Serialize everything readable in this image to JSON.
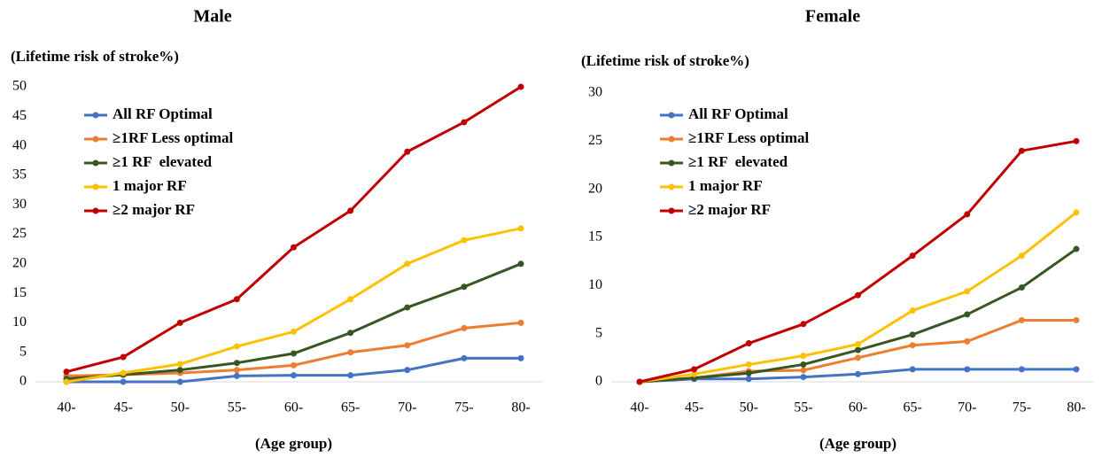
{
  "chart_data": [
    {
      "type": "line",
      "title": "Male",
      "y_label": "(Lifetime risk of stroke%)",
      "x_label": "(Age group)",
      "categories": [
        "40-",
        "45-",
        "50-",
        "55-",
        "60-",
        "65-",
        "70-",
        "75-",
        "80-"
      ],
      "ylim": [
        0,
        50
      ],
      "yticks": [
        0,
        5,
        10,
        15,
        20,
        25,
        30,
        35,
        40,
        45,
        50
      ],
      "series": [
        {
          "name": "All RF Optimal",
          "color": "#4472c4",
          "values": [
            0,
            0,
            0,
            1,
            1.1,
            1.1,
            2,
            4,
            4
          ]
        },
        {
          "name": "≥1RF Less optimal",
          "color": "#ed7d31",
          "values": [
            1,
            1.2,
            1.5,
            2,
            2.8,
            5,
            6.2,
            9.1,
            10
          ]
        },
        {
          "name": "≥1 RF  elevated",
          "color": "#375623",
          "values": [
            0.5,
            1.2,
            2,
            3.2,
            4.8,
            8.3,
            12.6,
            16.1,
            20
          ]
        },
        {
          "name": "1 major RF",
          "color": "#ffc000",
          "values": [
            0,
            1.5,
            3,
            6,
            8.5,
            14,
            20,
            24,
            26
          ]
        },
        {
          "name": "≥2 major RF",
          "color": "#c00000",
          "values": [
            1.7,
            4.2,
            10,
            14,
            22.8,
            29,
            39,
            44,
            50
          ]
        }
      ]
    },
    {
      "type": "line",
      "title": "Female",
      "y_label": "(Lifetime risk of stroke%)",
      "x_label": "(Age group)",
      "categories": [
        "40-",
        "45-",
        "50-",
        "55-",
        "60-",
        "65-",
        "70-",
        "75-",
        "80-"
      ],
      "ylim": [
        0,
        30
      ],
      "yticks": [
        0,
        5,
        10,
        15,
        20,
        25,
        30
      ],
      "series": [
        {
          "name": "All RF Optimal",
          "color": "#4472c4",
          "values": [
            0,
            0.3,
            0.3,
            0.5,
            0.8,
            1.3,
            1.3,
            1.3,
            1.3
          ]
        },
        {
          "name": "≥1RF Less optimal",
          "color": "#ed7d31",
          "values": [
            0,
            0.4,
            1.1,
            1.2,
            2.5,
            3.8,
            4.2,
            6.4,
            6.4
          ]
        },
        {
          "name": "≥1 RF  elevated",
          "color": "#375623",
          "values": [
            0,
            0.4,
            0.9,
            1.8,
            3.3,
            4.9,
            7,
            9.8,
            13.8
          ]
        },
        {
          "name": "1 major RF",
          "color": "#ffc000",
          "values": [
            0,
            0.8,
            1.8,
            2.7,
            3.9,
            7.4,
            9.4,
            13.1,
            17.6
          ]
        },
        {
          "name": "≥2 major RF",
          "color": "#c00000",
          "values": [
            0,
            1.3,
            4,
            6,
            9,
            13.1,
            17.4,
            24,
            25
          ]
        }
      ]
    }
  ]
}
